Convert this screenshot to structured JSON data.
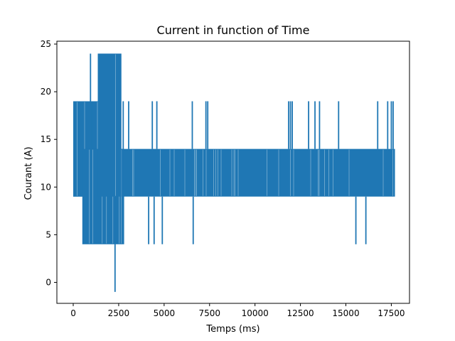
{
  "chart_data": {
    "type": "line",
    "title": "Current in function of Time",
    "xlabel": "Temps (ms)",
    "ylabel": "Courant (A)",
    "xlim": [
      -900,
      18500
    ],
    "ylim": [
      -2.2,
      25.3
    ],
    "xticks": [
      0,
      2500,
      5000,
      7500,
      10000,
      12500,
      15000,
      17500
    ],
    "xtick_labels": [
      "0",
      "2500",
      "5000",
      "7500",
      "10000",
      "12500",
      "15000",
      "17500"
    ],
    "yticks": [
      0,
      5,
      10,
      15,
      20,
      25
    ],
    "ytick_labels": [
      "0",
      "5",
      "10",
      "15",
      "20",
      "25"
    ],
    "grid": false,
    "series": [
      {
        "color": "#1f77b4",
        "description": "Current signal oscillating rapidly; dense band between 9 and 14 A over the whole range, with heavier activity early on",
        "bands": [
          {
            "x": [
              0,
              17700
            ],
            "y": [
              9,
              14
            ]
          },
          {
            "x": [
              0,
              2200
            ],
            "y": [
              9,
              19
            ]
          },
          {
            "x": [
              500,
              2800
            ],
            "y": [
              4,
              14
            ]
          },
          {
            "x": [
              1350,
              2650
            ],
            "y": [
              9,
              24
            ]
          }
        ],
        "spikes": [
          {
            "x": 950,
            "y": 24
          },
          {
            "x": 1050,
            "y": 19
          },
          {
            "x": 2300,
            "y": -1
          },
          {
            "x": 2750,
            "y": 19
          },
          {
            "x": 3050,
            "y": 19
          },
          {
            "x": 4150,
            "y": 4
          },
          {
            "x": 4350,
            "y": 19
          },
          {
            "x": 4450,
            "y": 4
          },
          {
            "x": 4600,
            "y": 19
          },
          {
            "x": 4900,
            "y": 4
          },
          {
            "x": 6550,
            "y": 19
          },
          {
            "x": 6600,
            "y": 4
          },
          {
            "x": 7300,
            "y": 19
          },
          {
            "x": 7400,
            "y": 19
          },
          {
            "x": 11850,
            "y": 19
          },
          {
            "x": 11950,
            "y": 19
          },
          {
            "x": 12050,
            "y": 19
          },
          {
            "x": 12950,
            "y": 19
          },
          {
            "x": 13300,
            "y": 19
          },
          {
            "x": 13550,
            "y": 19
          },
          {
            "x": 14600,
            "y": 19
          },
          {
            "x": 15550,
            "y": 4
          },
          {
            "x": 16100,
            "y": 4
          },
          {
            "x": 16750,
            "y": 19
          },
          {
            "x": 17300,
            "y": 19
          },
          {
            "x": 17500,
            "y": 19
          },
          {
            "x": 17600,
            "y": 19
          }
        ]
      }
    ]
  }
}
